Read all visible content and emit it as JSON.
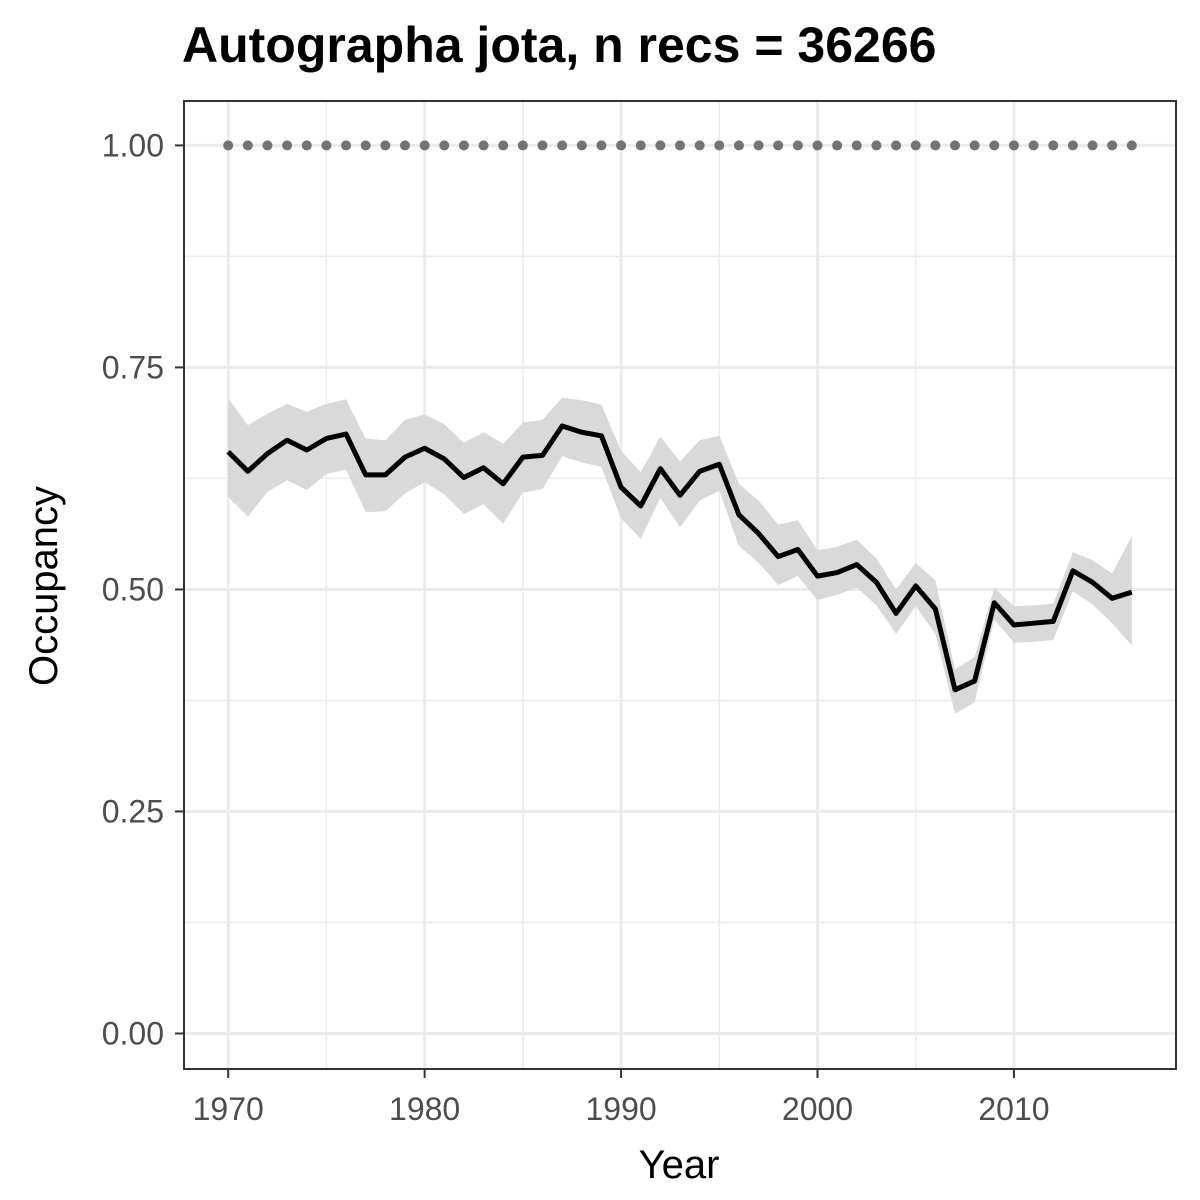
{
  "chart_data": {
    "type": "line",
    "title": "Autographa jota, n recs = 36266",
    "xlabel": "Year",
    "ylabel": "Occupancy",
    "xlim": [
      1967.75,
      2018.25
    ],
    "ylim": [
      -0.04,
      1.05
    ],
    "x_ticks": [
      1970,
      1980,
      1990,
      2000,
      2010
    ],
    "x_tick_labels": [
      "1970",
      "1980",
      "1990",
      "2000",
      "2010"
    ],
    "y_ticks": [
      0,
      0.25,
      0.5,
      0.75,
      1
    ],
    "y_tick_labels": [
      "0.00",
      "0.25",
      "0.50",
      "0.75",
      "1.00"
    ],
    "grid": true,
    "legend": "none",
    "colors": {
      "line": "#000000",
      "band": "#d9d9d9",
      "dots": "#737373",
      "grid": "#ebebeb",
      "panel_border": "#333333"
    },
    "series": [
      {
        "role": "mean",
        "x": [
          1970,
          1971,
          1972,
          1973,
          1974,
          1975,
          1976,
          1977,
          1978,
          1979,
          1980,
          1981,
          1982,
          1983,
          1984,
          1985,
          1986,
          1987,
          1988,
          1989,
          1990,
          1991,
          1992,
          1993,
          1994,
          1995,
          1996,
          1997,
          1998,
          1999,
          2000,
          2001,
          2002,
          2003,
          2004,
          2005,
          2006,
          2007,
          2008,
          2009,
          2010,
          2011,
          2012,
          2013,
          2014,
          2015,
          2016
        ],
        "y": [
          0.655,
          0.633,
          0.653,
          0.668,
          0.657,
          0.67,
          0.675,
          0.629,
          0.629,
          0.649,
          0.659,
          0.647,
          0.626,
          0.637,
          0.619,
          0.649,
          0.651,
          0.684,
          0.677,
          0.673,
          0.615,
          0.594,
          0.636,
          0.606,
          0.633,
          0.641,
          0.584,
          0.563,
          0.537,
          0.545,
          0.515,
          0.519,
          0.528,
          0.508,
          0.473,
          0.504,
          0.478,
          0.387,
          0.397,
          0.485,
          0.46,
          0.462,
          0.464,
          0.521,
          0.508,
          0.49,
          0.497
        ]
      },
      {
        "role": "upper",
        "x": [
          1970,
          1971,
          1972,
          1973,
          1974,
          1975,
          1976,
          1977,
          1978,
          1979,
          1980,
          1981,
          1982,
          1983,
          1984,
          1985,
          1986,
          1987,
          1988,
          1989,
          1990,
          1991,
          1992,
          1993,
          1994,
          1995,
          1996,
          1997,
          1998,
          1999,
          2000,
          2001,
          2002,
          2003,
          2004,
          2005,
          2006,
          2007,
          2008,
          2009,
          2010,
          2011,
          2012,
          2013,
          2014,
          2015,
          2016
        ],
        "y": [
          0.715,
          0.685,
          0.698,
          0.709,
          0.7,
          0.709,
          0.714,
          0.67,
          0.668,
          0.691,
          0.697,
          0.686,
          0.665,
          0.677,
          0.664,
          0.688,
          0.691,
          0.716,
          0.713,
          0.708,
          0.656,
          0.632,
          0.672,
          0.644,
          0.668,
          0.673,
          0.619,
          0.6,
          0.573,
          0.578,
          0.544,
          0.548,
          0.556,
          0.535,
          0.5,
          0.53,
          0.51,
          0.41,
          0.424,
          0.502,
          0.481,
          0.482,
          0.484,
          0.542,
          0.533,
          0.518,
          0.56
        ]
      },
      {
        "role": "lower",
        "x": [
          1970,
          1971,
          1972,
          1973,
          1974,
          1975,
          1976,
          1977,
          1978,
          1979,
          1980,
          1981,
          1982,
          1983,
          1984,
          1985,
          1986,
          1987,
          1988,
          1989,
          1990,
          1991,
          1992,
          1993,
          1994,
          1995,
          1996,
          1997,
          1998,
          1999,
          2000,
          2001,
          2002,
          2003,
          2004,
          2005,
          2006,
          2007,
          2008,
          2009,
          2010,
          2011,
          2012,
          2013,
          2014,
          2015,
          2016
        ],
        "y": [
          0.604,
          0.582,
          0.61,
          0.623,
          0.612,
          0.63,
          0.635,
          0.587,
          0.588,
          0.608,
          0.621,
          0.607,
          0.585,
          0.596,
          0.574,
          0.609,
          0.613,
          0.65,
          0.643,
          0.638,
          0.58,
          0.557,
          0.603,
          0.57,
          0.6,
          0.611,
          0.549,
          0.53,
          0.505,
          0.515,
          0.488,
          0.494,
          0.502,
          0.482,
          0.45,
          0.481,
          0.45,
          0.36,
          0.373,
          0.466,
          0.44,
          0.441,
          0.443,
          0.498,
          0.483,
          0.462,
          0.437
        ]
      },
      {
        "role": "dots",
        "x": [
          1970,
          1971,
          1972,
          1973,
          1974,
          1975,
          1976,
          1977,
          1978,
          1979,
          1980,
          1981,
          1982,
          1983,
          1984,
          1985,
          1986,
          1987,
          1988,
          1989,
          1990,
          1991,
          1992,
          1993,
          1994,
          1995,
          1996,
          1997,
          1998,
          1999,
          2000,
          2001,
          2002,
          2003,
          2004,
          2005,
          2006,
          2007,
          2008,
          2009,
          2010,
          2011,
          2012,
          2013,
          2014,
          2015,
          2016
        ],
        "y": [
          1,
          1,
          1,
          1,
          1,
          1,
          1,
          1,
          1,
          1,
          1,
          1,
          1,
          1,
          1,
          1,
          1,
          1,
          1,
          1,
          1,
          1,
          1,
          1,
          1,
          1,
          1,
          1,
          1,
          1,
          1,
          1,
          1,
          1,
          1,
          1,
          1,
          1,
          1,
          1,
          1,
          1,
          1,
          1,
          1,
          1,
          1
        ]
      }
    ]
  }
}
